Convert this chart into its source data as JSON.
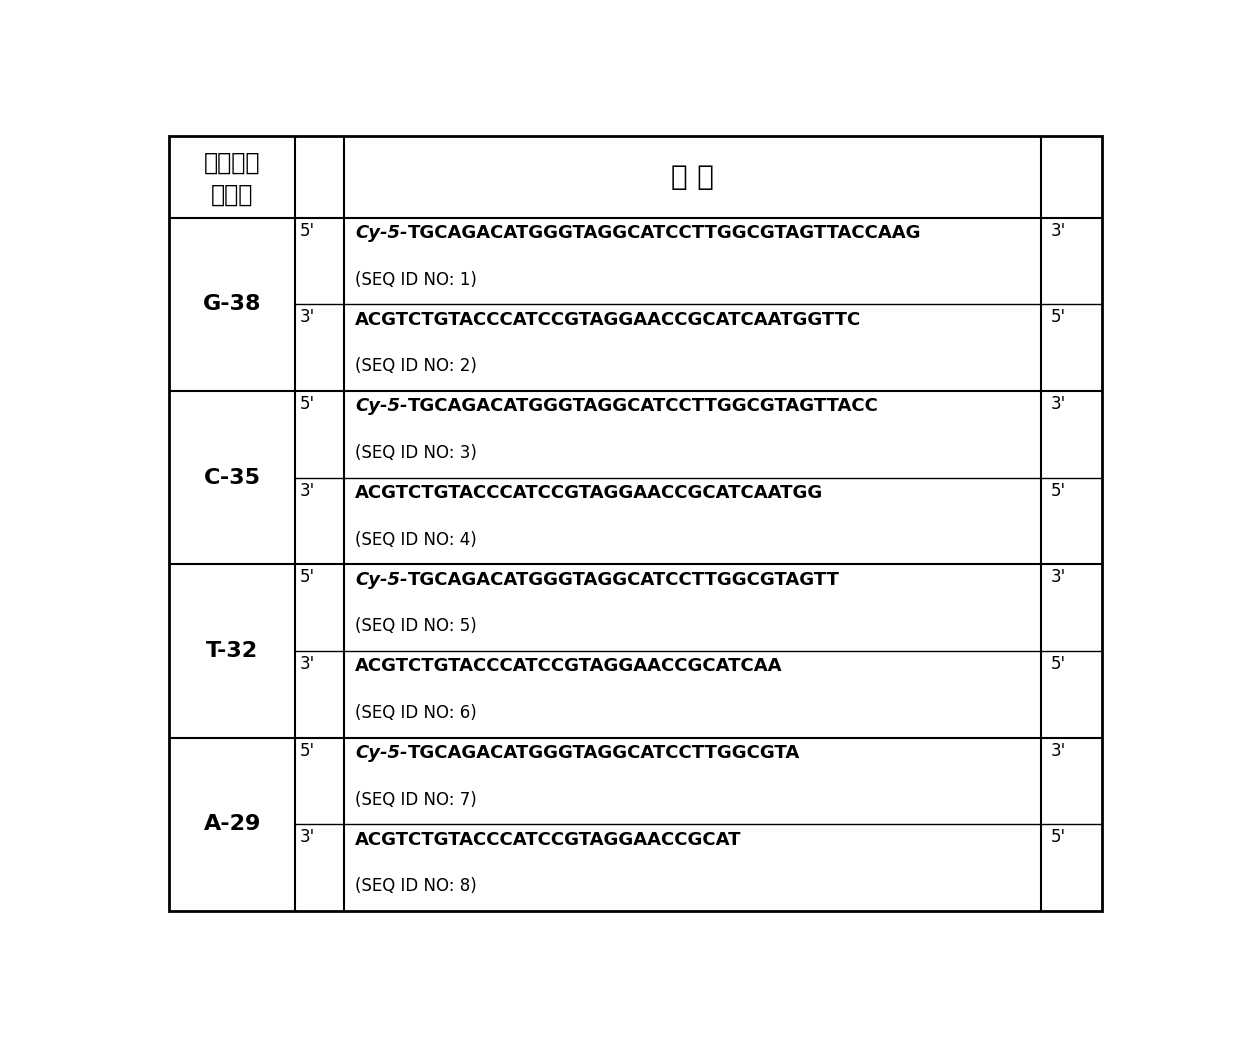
{
  "title_col1_line1": "寡核苷酸",
  "title_col1_line2": "双链体",
  "title_col2": "引 物",
  "rows": [
    {
      "duplex": "G-38",
      "strands": [
        {
          "end_left": "5'",
          "seq_prefix_italic": "Cy-5-",
          "seq_main": "TGCAGACATGGGTAGGCATCCTTGGCGTAGTTACCAAG",
          "seq_id": "(SEQ ID NO: 1)",
          "end_right": "3'",
          "is_bold": true
        },
        {
          "end_left": "3'",
          "seq_prefix_italic": "",
          "seq_main": "ACGTCTGTACCCATCCGTAGGAACCGCATCAATGGTTC",
          "seq_id": "(SEQ ID NO: 2)",
          "end_right": "5'",
          "is_bold": false
        }
      ]
    },
    {
      "duplex": "C-35",
      "strands": [
        {
          "end_left": "5'",
          "seq_prefix_italic": "Cy-5-",
          "seq_main": "TGCAGACATGGGTAGGCATCCTTGGCGTAGTTACC",
          "seq_id": "(SEQ ID NO: 3)",
          "end_right": "3'",
          "is_bold": true
        },
        {
          "end_left": "3'",
          "seq_prefix_italic": "",
          "seq_main": "ACGTCTGTACCCATCCGTAGGAACCGCATCAATGG",
          "seq_id": "(SEQ ID NO: 4)",
          "end_right": "5'",
          "is_bold": false
        }
      ]
    },
    {
      "duplex": "T-32",
      "strands": [
        {
          "end_left": "5'",
          "seq_prefix_italic": "Cy-5-",
          "seq_main": "TGCAGACATGGGTAGGCATCCTTGGCGTAGTT",
          "seq_id": "(SEQ ID NO: 5)",
          "end_right": "3'",
          "is_bold": true
        },
        {
          "end_left": "3'",
          "seq_prefix_italic": "",
          "seq_main": "ACGTCTGTACCCATCCGTAGGAACCGCATCAA",
          "seq_id": "(SEQ ID NO: 6)",
          "end_right": "5'",
          "is_bold": false
        }
      ]
    },
    {
      "duplex": "A-29",
      "strands": [
        {
          "end_left": "5'",
          "seq_prefix_italic": "Cy-5-",
          "seq_main": "TGCAGACATGGGTAGGCATCCTTGGCGTA",
          "seq_id": "(SEQ ID NO: 7)",
          "end_right": "3'",
          "is_bold": true
        },
        {
          "end_left": "3'",
          "seq_prefix_italic": "",
          "seq_main": "ACGTCTGTACCCATCCGTAGGAACCGCAT",
          "seq_id": "(SEQ ID NO: 8)",
          "end_right": "5'",
          "is_bold": false
        }
      ]
    }
  ],
  "bg_color": "#ffffff",
  "border_color": "#000000",
  "text_color": "#000000",
  "header_bg": "#ffffff",
  "figwidth": 12.4,
  "figheight": 10.37,
  "dpi": 100
}
